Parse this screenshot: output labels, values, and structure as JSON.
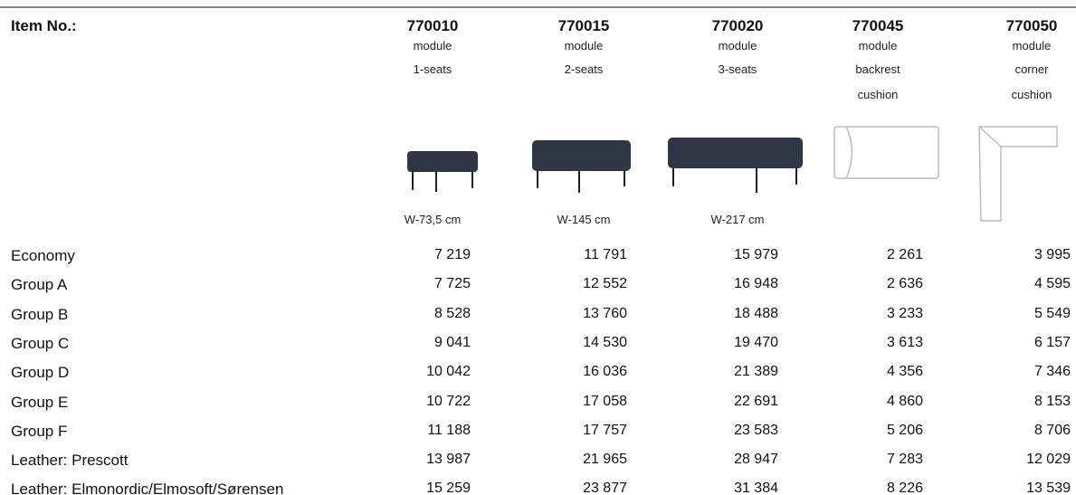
{
  "header": {
    "label": "Item No.:",
    "columns": [
      {
        "number": "770010",
        "lines": [
          "module",
          "1-seats"
        ],
        "size": "W-73,5 cm"
      },
      {
        "number": "770015",
        "lines": [
          "module",
          "2-seats"
        ],
        "size": "W-145 cm"
      },
      {
        "number": "770020",
        "lines": [
          "module",
          "3-seats"
        ],
        "size": "W-217 cm"
      },
      {
        "number": "770045",
        "lines": [
          "module",
          "backrest",
          "cushion"
        ]
      },
      {
        "number": "770050",
        "lines": [
          "module",
          "corner",
          "cushion"
        ]
      }
    ]
  },
  "table": {
    "rows": [
      {
        "label": "Economy",
        "values": [
          "7 219",
          "11 791",
          "15 979",
          "2 261",
          "3 995"
        ]
      },
      {
        "label": "Group A",
        "values": [
          "7 725",
          "12 552",
          "16 948",
          "2 636",
          "4 595"
        ]
      },
      {
        "label": "Group B",
        "values": [
          "8 528",
          "13 760",
          "18 488",
          "3 233",
          "5 549"
        ]
      },
      {
        "label": "Group C",
        "values": [
          "9 041",
          "14 530",
          "19 470",
          "3 613",
          "6 157"
        ]
      },
      {
        "label": "Group D",
        "values": [
          "10 042",
          "16 036",
          "21 389",
          "4 356",
          "7 346"
        ]
      },
      {
        "label": "Group E",
        "values": [
          "10 722",
          "17 058",
          "22 691",
          "4 860",
          "8 153"
        ]
      },
      {
        "label": "Group F",
        "values": [
          "11 188",
          "17 757",
          "23 583",
          "5 206",
          "8 706"
        ]
      },
      {
        "label": "Leather: Prescott",
        "values": [
          "13 987",
          "21 965",
          "28 947",
          "7 283",
          "12 029"
        ]
      },
      {
        "label": "Leather: Elmonordic/Elmosoft/Sørensen",
        "values": [
          "15 259",
          "23 877",
          "31 384",
          "8 226",
          "13 539"
        ]
      }
    ]
  }
}
